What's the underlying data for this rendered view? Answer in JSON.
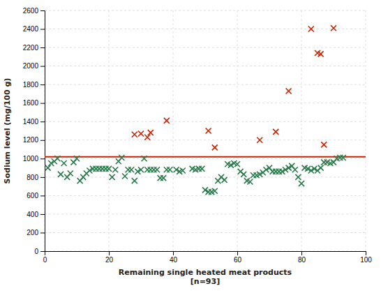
{
  "chart_data": {
    "type": "scatter",
    "xlabel": "Remaining single heated meat products\n[n=93]",
    "ylabel": "Sodium level (mg/100 g)",
    "xlim": [
      0,
      100
    ],
    "ylim": [
      0,
      2600
    ],
    "xticks": [
      0,
      20,
      40,
      60,
      80,
      100
    ],
    "yticks": [
      0,
      200,
      400,
      600,
      800,
      1000,
      1200,
      1400,
      1600,
      1800,
      2000,
      2200,
      2400,
      2600
    ],
    "grid": true,
    "reference_lines": [
      {
        "value": 1020,
        "color": "#cc2200"
      }
    ],
    "series": [
      {
        "color": "#2a7a4b",
        "marker": "x",
        "x": [
          1,
          2,
          3,
          4,
          5,
          6,
          7,
          8,
          9,
          10,
          11,
          12,
          13,
          14,
          15,
          16,
          17,
          18,
          19,
          20,
          21,
          22,
          23,
          24,
          25,
          26,
          27,
          28,
          29,
          30,
          31,
          32,
          33,
          34,
          35,
          36,
          37,
          38,
          39,
          41,
          42,
          43,
          46,
          47,
          48,
          49,
          50,
          51,
          52,
          53,
          54,
          55,
          56,
          57,
          58,
          59,
          60,
          61,
          62,
          63,
          64,
          65,
          66,
          67,
          68,
          69,
          70,
          71,
          72,
          73,
          74,
          75,
          76,
          77,
          78,
          79,
          80,
          81,
          82,
          83,
          84,
          85,
          86,
          87,
          88,
          89,
          90,
          91,
          92,
          93
        ],
        "values": [
          900,
          950,
          970,
          1000,
          830,
          950,
          800,
          840,
          960,
          1000,
          760,
          800,
          840,
          870,
          890,
          890,
          890,
          890,
          890,
          890,
          800,
          880,
          970,
          1010,
          810,
          880,
          880,
          760,
          860,
          880,
          1000,
          880,
          880,
          880,
          880,
          790,
          790,
          880,
          880,
          880,
          860,
          870,
          890,
          880,
          890,
          890,
          660,
          640,
          640,
          650,
          760,
          800,
          770,
          940,
          930,
          950,
          940,
          860,
          830,
          760,
          750,
          820,
          820,
          830,
          850,
          880,
          900,
          860,
          860,
          860,
          860,
          880,
          900,
          920,
          880,
          800,
          730,
          900,
          890,
          870,
          890,
          870,
          900,
          960,
          960,
          950,
          960,
          1000,
          1010,
          1010
        ]
      },
      {
        "color": "#cc2200",
        "marker": "x",
        "x": [
          28,
          30,
          32,
          33,
          38,
          51,
          53,
          67,
          72,
          76,
          83,
          85,
          86,
          87,
          90
        ],
        "values": [
          1260,
          1270,
          1230,
          1280,
          1410,
          1300,
          1120,
          1200,
          1290,
          1730,
          2400,
          2140,
          2130,
          1150,
          2410
        ]
      }
    ]
  }
}
